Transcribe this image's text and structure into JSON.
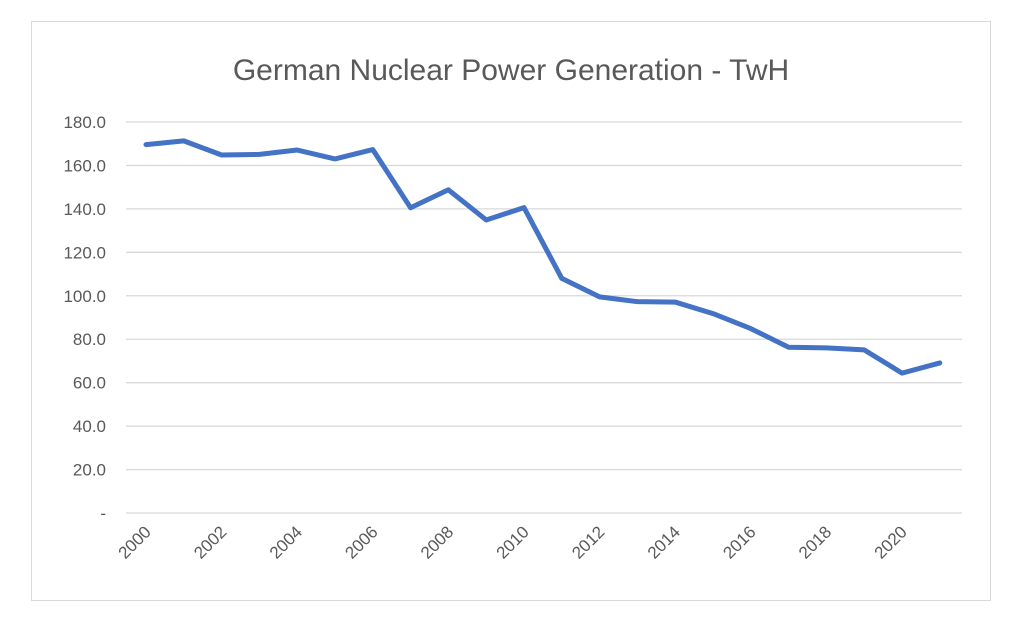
{
  "chart_data": {
    "type": "line",
    "title": "German Nuclear Power Generation - TwH",
    "xlabel": "",
    "ylabel": "",
    "x": [
      2000,
      2001,
      2002,
      2003,
      2004,
      2005,
      2006,
      2007,
      2008,
      2009,
      2010,
      2011,
      2012,
      2013,
      2014,
      2015,
      2016,
      2017,
      2018,
      2019,
      2020,
      2021
    ],
    "x_tick_labels": [
      "2000",
      "2002",
      "2004",
      "2006",
      "2008",
      "2010",
      "2012",
      "2014",
      "2016",
      "2018",
      "2020"
    ],
    "x_tick_values": [
      2000,
      2002,
      2004,
      2006,
      2008,
      2010,
      2012,
      2014,
      2016,
      2018,
      2020
    ],
    "ylim": [
      0,
      180
    ],
    "y_ticks": [
      0,
      20,
      40,
      60,
      80,
      100,
      120,
      140,
      160,
      180
    ],
    "y_tick_labels": [
      "-",
      "20.0",
      "40.0",
      "60.0",
      "80.0",
      "100.0",
      "120.0",
      "140.0",
      "160.0",
      "180.0"
    ],
    "grid": true,
    "legend": "none",
    "series": [
      {
        "color": "#4472c4",
        "values": [
          169.6,
          171.3,
          164.8,
          165.1,
          167.1,
          163.0,
          167.3,
          140.5,
          148.8,
          134.9,
          140.6,
          108.0,
          99.5,
          97.3,
          97.1,
          91.8,
          84.9,
          76.3,
          76.0,
          75.1,
          64.4,
          69.1
        ]
      }
    ]
  }
}
